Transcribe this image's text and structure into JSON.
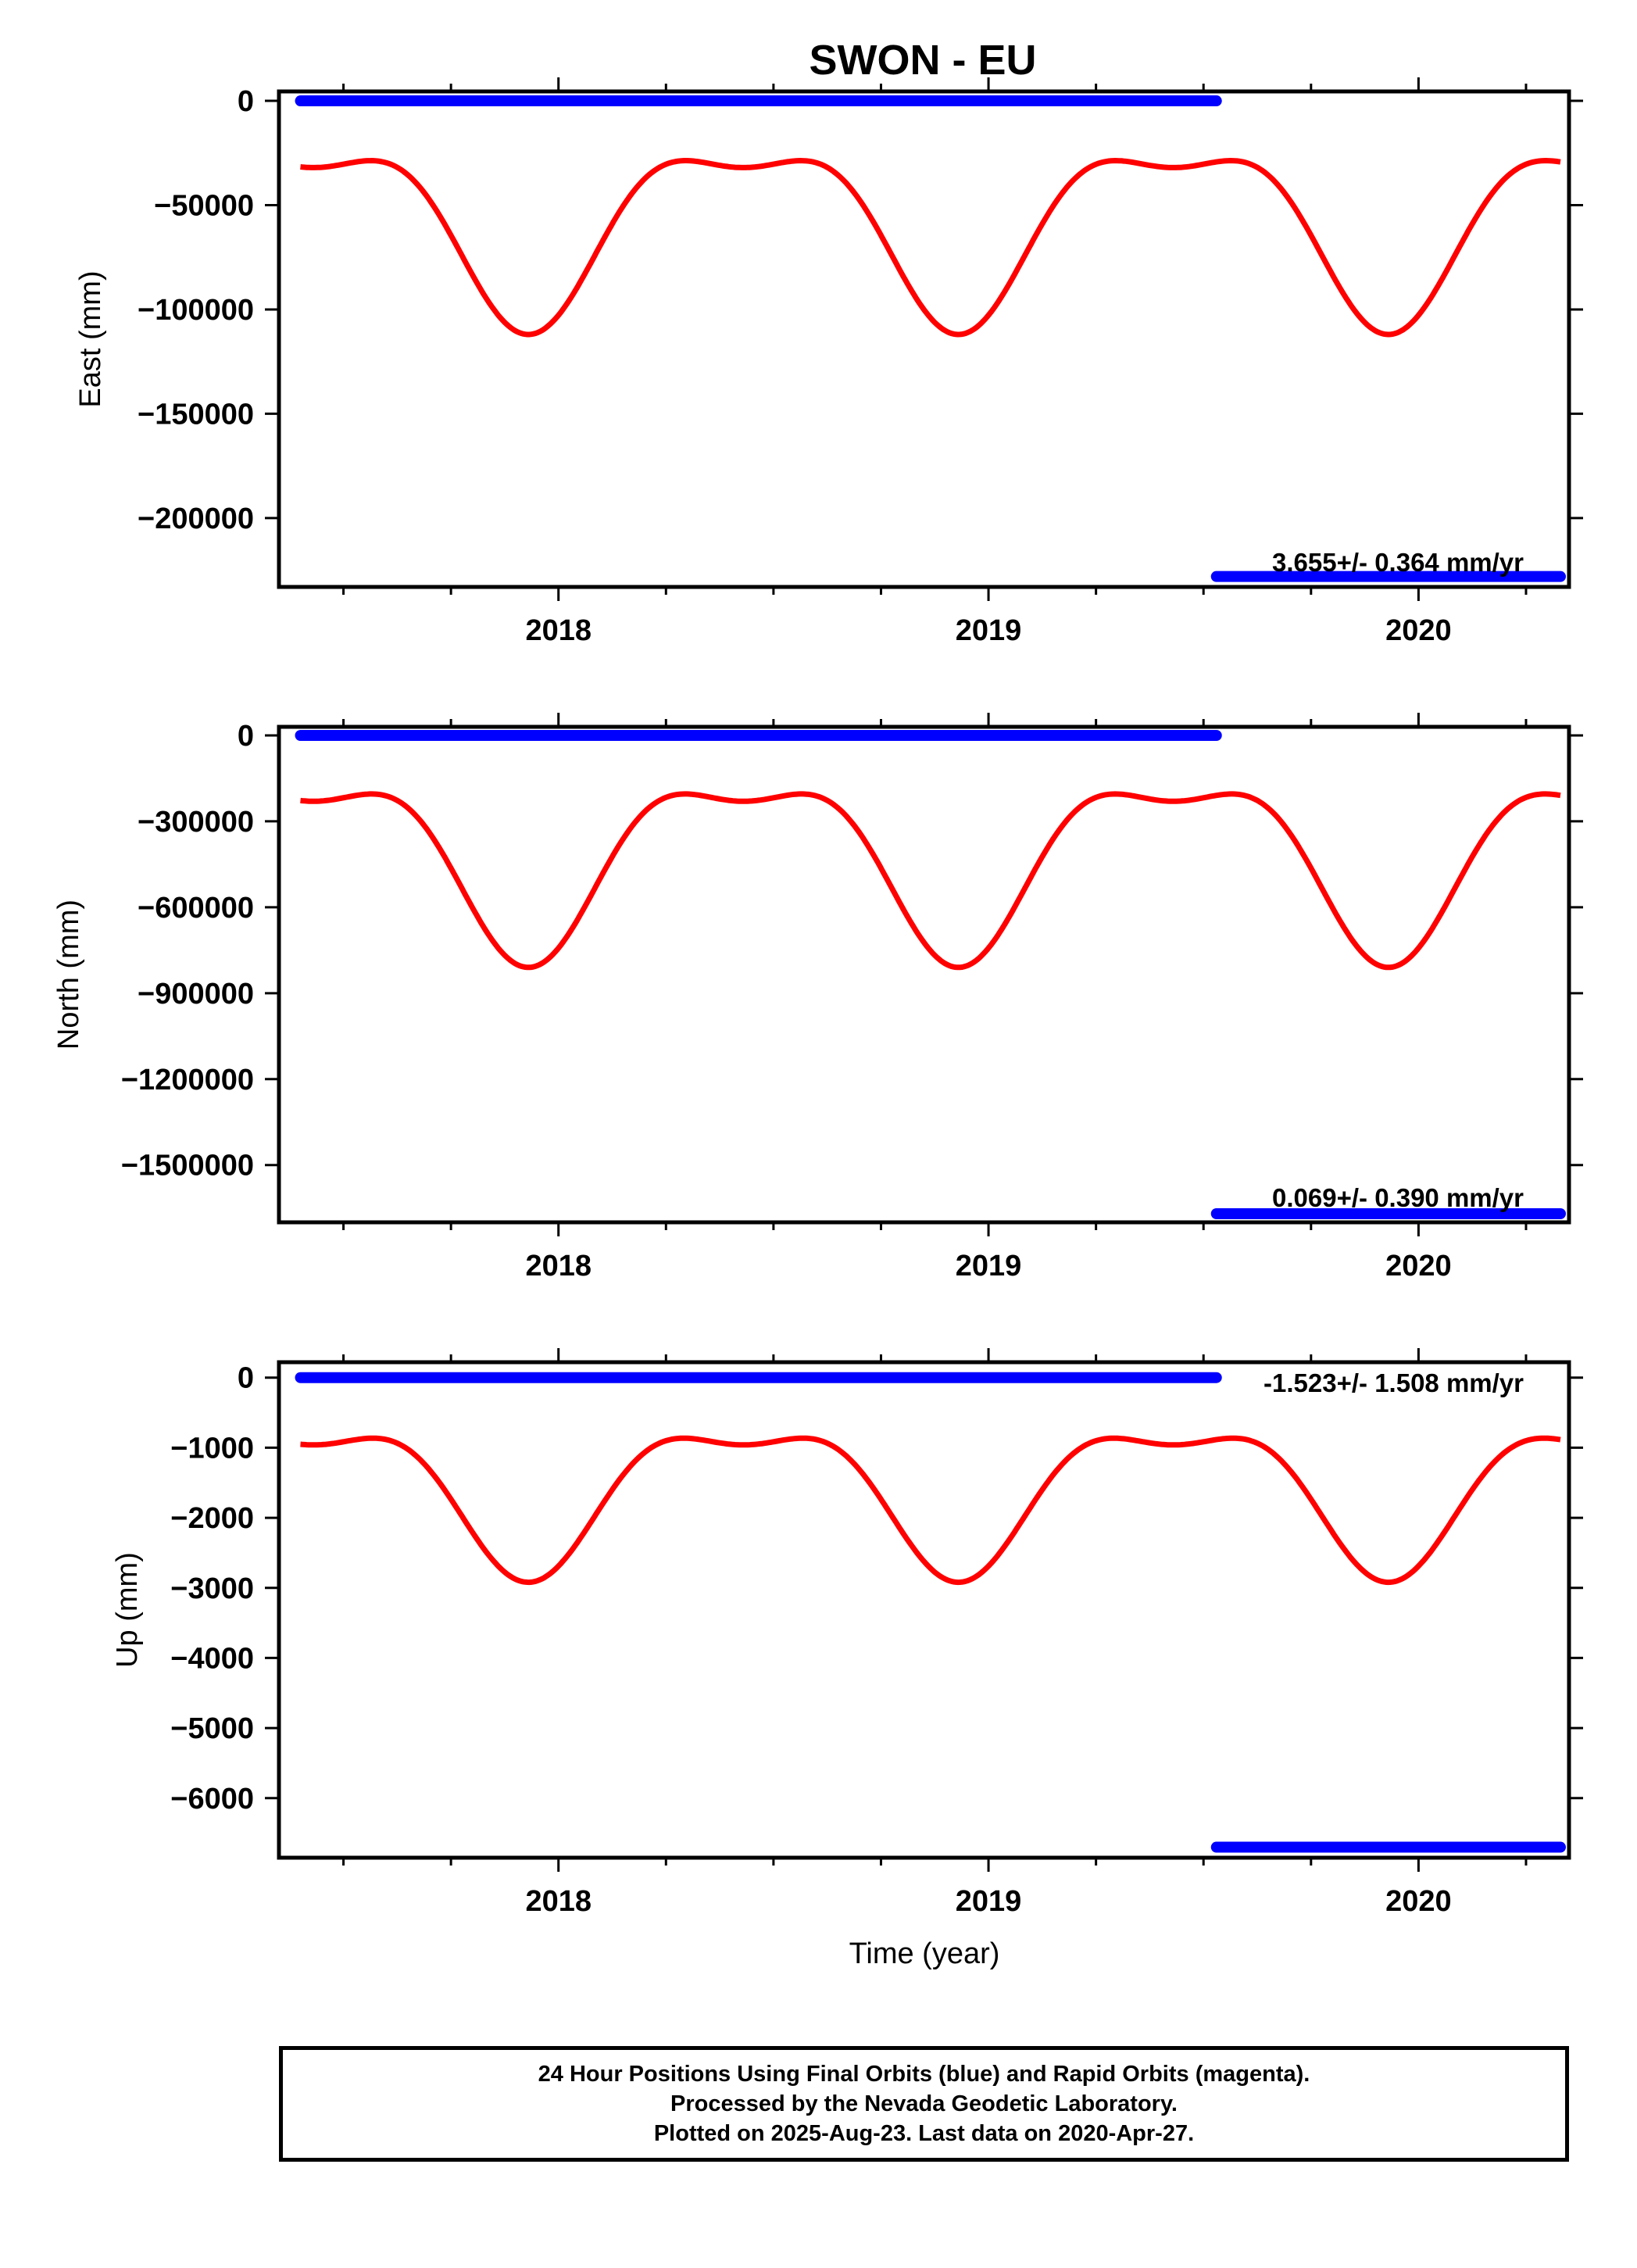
{
  "title": "SWON - EU",
  "x_axis_label": "Time (year)",
  "colors": {
    "final": "#0000ff",
    "model": "#ff0000",
    "frame": "#000000"
  },
  "footer": {
    "line1": "24 Hour Positions Using Final Orbits (blue) and Rapid Orbits (magenta).",
    "line2": "Processed by the Nevada Geodetic Laboratory.",
    "line3": "Plotted on 2025-Aug-23. Last data on 2020-Apr-27."
  },
  "chart_data": [
    {
      "type": "scatter",
      "ylabel": "East (mm)",
      "xlim": [
        2017.35,
        2020.35
      ],
      "ylim": [
        -233000,
        4500
      ],
      "xticks": [
        2018,
        2019,
        2020
      ],
      "yticks": [
        0,
        -50000,
        -100000,
        -150000,
        -200000
      ],
      "ytick_labels": [
        "0",
        "−50000",
        "−100000",
        "−150000",
        "−200000"
      ],
      "rate_label": "3.655+/- 0.364 mm/yr",
      "rate_label_position": "bottom-right",
      "series": [
        {
          "role": "final-orbit-daily-positions",
          "color": "#0000ff",
          "segments": [
            {
              "x": [
                2017.4,
                2019.53
              ],
              "y": 0
            },
            {
              "x": [
                2019.53,
                2020.33
              ],
              "y": -228000
            }
          ]
        },
        {
          "role": "model-fit",
          "color": "#ff0000",
          "x_range": [
            2017.4,
            2020.33
          ],
          "baseline": -57000,
          "annual_amp": 40000,
          "semiannual_amp": 15000,
          "phase_peak": 2017.43
        }
      ]
    },
    {
      "type": "scatter",
      "ylabel": "North (mm)",
      "xlim": [
        2017.35,
        2020.35
      ],
      "ylim": [
        -1700000,
        30000
      ],
      "xticks": [
        2018,
        2019,
        2020
      ],
      "yticks": [
        0,
        -300000,
        -600000,
        -900000,
        -1200000,
        -1500000
      ],
      "ytick_labels": [
        "0",
        "−300000",
        "−600000",
        "−900000",
        "−1200000",
        "−1500000"
      ],
      "rate_label": "0.069+/- 0.390 mm/yr",
      "rate_label_position": "bottom-right",
      "series": [
        {
          "role": "final-orbit-daily-positions",
          "color": "#0000ff",
          "segments": [
            {
              "x": [
                2017.4,
                2019.53
              ],
              "y": 0
            },
            {
              "x": [
                2019.53,
                2020.33
              ],
              "y": -1670000
            }
          ]
        },
        {
          "role": "model-fit",
          "color": "#ff0000",
          "x_range": [
            2017.4,
            2020.33
          ],
          "baseline": -410000,
          "annual_amp": 290000,
          "semiannual_amp": 110000,
          "phase_peak": 2017.43
        }
      ]
    },
    {
      "type": "scatter",
      "ylabel": "Up (mm)",
      "xlim": [
        2017.35,
        2020.35
      ],
      "ylim": [
        -6850,
        220
      ],
      "xticks": [
        2018,
        2019,
        2020
      ],
      "yticks": [
        0,
        -1000,
        -2000,
        -3000,
        -4000,
        -5000,
        -6000
      ],
      "ytick_labels": [
        "0",
        "−1000",
        "−2000",
        "−3000",
        "−4000",
        "−5000",
        "−6000"
      ],
      "rate_label": "-1.523+/- 1.508 mm/yr",
      "rate_label_position": "top-right",
      "series": [
        {
          "role": "final-orbit-daily-positions",
          "color": "#0000ff",
          "segments": [
            {
              "x": [
                2017.4,
                2019.53
              ],
              "y": 0
            },
            {
              "x": [
                2019.53,
                2020.33
              ],
              "y": -6700
            }
          ]
        },
        {
          "role": "model-fit",
          "color": "#ff0000",
          "x_range": [
            2017.4,
            2020.33
          ],
          "baseline": -1560,
          "annual_amp": 980,
          "semiannual_amp": 380,
          "phase_peak": 2017.43
        }
      ]
    }
  ]
}
